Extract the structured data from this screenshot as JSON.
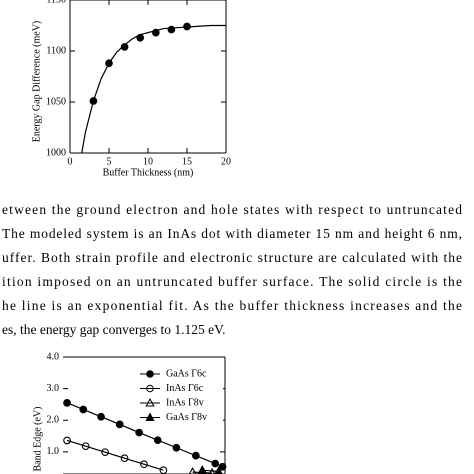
{
  "chart_data": [
    {
      "type": "line",
      "xlabel": "Buffer Thickness (nm)",
      "ylabel": "Energy Gap Difference (meV)",
      "xlim": [
        0,
        20
      ],
      "ylim": [
        1000,
        1150
      ],
      "xticks": [
        0,
        5,
        10,
        15,
        20
      ],
      "yticks": [
        1000,
        1050,
        1100,
        1150
      ],
      "series": [
        {
          "color": "#000000",
          "marker": "circle",
          "fill": "#000000",
          "line": false,
          "x": [
            3,
            5,
            7,
            9,
            11,
            13,
            15
          ],
          "values": [
            1051,
            1088,
            1104,
            1113,
            1118,
            1121,
            1124
          ]
        },
        {
          "color": "#000000",
          "marker": "none",
          "line": true,
          "x": [
            1.5,
            2,
            3,
            4,
            5,
            6,
            7,
            8,
            9,
            10,
            12,
            14,
            16,
            18,
            20
          ],
          "values": [
            1000,
            1021,
            1051,
            1073,
            1088,
            1099,
            1106,
            1112,
            1116,
            1118,
            1122,
            1123,
            1124,
            1125,
            1125
          ]
        }
      ]
    },
    {
      "type": "line",
      "ylabel": "Band Edge (eV)",
      "xlim": [
        0,
        10
      ],
      "ylim": [
        0.3,
        4.0
      ],
      "yticks": [
        {
          "value": 1,
          "label": "1.0"
        },
        {
          "value": 2,
          "label": "2.0"
        },
        {
          "value": 3,
          "label": "3.0"
        },
        {
          "value": 4,
          "label": "4.0"
        }
      ],
      "legend": "upper right",
      "series": [
        {
          "name": "GaAs Γ6c",
          "color": "#000000",
          "marker": "circle",
          "fill": "#000000",
          "line": true,
          "x": [
            0.25,
            1.25,
            2.35,
            3.5,
            4.7,
            5.85,
            7.0,
            8.2,
            9.4,
            9.85
          ],
          "values": [
            2.55,
            2.34,
            2.11,
            1.87,
            1.61,
            1.37,
            1.13,
            0.88,
            0.63,
            0.53
          ]
        },
        {
          "name": "InAs Γ6c",
          "color": "#000000",
          "marker": "circle",
          "fill": "none",
          "line": true,
          "x": [
            0.25,
            1.4,
            2.6,
            3.8,
            5.0,
            6.2
          ],
          "values": [
            1.36,
            1.18,
            0.99,
            0.8,
            0.61,
            0.42
          ]
        },
        {
          "name": "InAs Γ8v",
          "color": "#000000",
          "marker": "triangle",
          "fill": "none",
          "line": true,
          "x": [
            8.0,
            9.2
          ],
          "values": [
            0.36,
            0.33
          ]
        },
        {
          "name": "GaAs Γ8v",
          "color": "#000000",
          "marker": "triangle",
          "fill": "#000000",
          "line": true,
          "x": [
            8.6,
            9.6
          ],
          "values": [
            0.42,
            0.38
          ]
        }
      ]
    }
  ],
  "caption": {
    "lines": [
      "etween the ground electron and hole states with respect to untruncated",
      "The modeled system is an InAs dot with diameter 15 nm and height 6 nm,",
      "uffer. Both strain profile and electronic structure are calculated with the",
      "ition imposed on an untruncated buffer surface. The solid circle is the",
      "he line is an exponential fit. As the buffer thickness increases and the",
      "es, the energy gap converges to 1.125 eV."
    ]
  }
}
